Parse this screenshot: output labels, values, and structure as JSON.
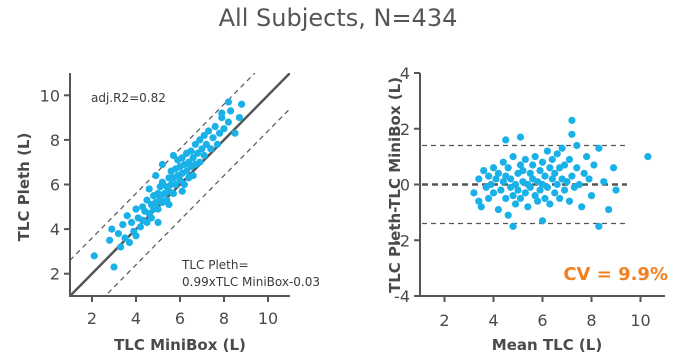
{
  "title": "All Subjects, N=434",
  "colors": {
    "points": "#1ab1e8",
    "axis": "#555555",
    "cv": "#f08020"
  },
  "chart_data": [
    {
      "type": "scatter",
      "xlabel": "TLC MiniBox (L)",
      "ylabel": "TLC Pleth (L)",
      "xlim": [
        1,
        11
      ],
      "ylim": [
        1,
        11
      ],
      "xticks": [
        2,
        4,
        6,
        8,
        10
      ],
      "yticks": [
        2,
        4,
        6,
        8,
        10
      ],
      "annotations": [
        "adj.R2=0.82",
        "TLC Pleth=",
        "0.99xTLC MiniBox-0.03"
      ],
      "identity_line": {
        "x": [
          1,
          11
        ],
        "y": [
          1,
          11
        ]
      },
      "limit_lines": [
        {
          "x": [
            1,
            11
          ],
          "y": [
            2.6,
            12.6
          ]
        },
        {
          "x": [
            1,
            11
          ],
          "y": [
            -0.6,
            9.4
          ]
        }
      ],
      "points": [
        [
          2.1,
          2.8
        ],
        [
          2.8,
          3.5
        ],
        [
          3.0,
          2.3
        ],
        [
          3.2,
          3.8
        ],
        [
          3.4,
          4.2
        ],
        [
          3.5,
          3.6
        ],
        [
          3.6,
          4.6
        ],
        [
          3.7,
          3.4
        ],
        [
          3.8,
          4.3
        ],
        [
          3.9,
          3.9
        ],
        [
          4.0,
          4.9
        ],
        [
          4.0,
          3.7
        ],
        [
          4.1,
          4.5
        ],
        [
          4.2,
          4.1
        ],
        [
          4.3,
          5.0
        ],
        [
          4.3,
          4.4
        ],
        [
          4.4,
          4.8
        ],
        [
          4.5,
          4.3
        ],
        [
          4.5,
          5.3
        ],
        [
          4.6,
          4.7
        ],
        [
          4.7,
          5.1
        ],
        [
          4.7,
          4.5
        ],
        [
          4.8,
          5.5
        ],
        [
          4.8,
          4.9
        ],
        [
          4.9,
          5.2
        ],
        [
          5.0,
          5.6
        ],
        [
          5.0,
          4.9
        ],
        [
          5.1,
          5.4
        ],
        [
          5.1,
          5.9
        ],
        [
          5.2,
          5.2
        ],
        [
          5.2,
          6.1
        ],
        [
          5.3,
          5.6
        ],
        [
          5.4,
          5.9
        ],
        [
          5.4,
          5.3
        ],
        [
          5.5,
          6.3
        ],
        [
          5.5,
          5.7
        ],
        [
          5.6,
          6.0
        ],
        [
          5.6,
          6.6
        ],
        [
          5.7,
          5.6
        ],
        [
          5.7,
          6.3
        ],
        [
          5.8,
          6.7
        ],
        [
          5.8,
          6.0
        ],
        [
          5.9,
          6.4
        ],
        [
          5.9,
          7.1
        ],
        [
          6.0,
          6.2
        ],
        [
          6.0,
          6.8
        ],
        [
          6.1,
          6.5
        ],
        [
          6.1,
          7.2
        ],
        [
          6.2,
          6.0
        ],
        [
          6.2,
          6.9
        ],
        [
          6.3,
          6.6
        ],
        [
          6.3,
          7.4
        ],
        [
          6.4,
          7.0
        ],
        [
          6.4,
          6.3
        ],
        [
          6.5,
          7.5
        ],
        [
          6.5,
          6.8
        ],
        [
          6.6,
          7.2
        ],
        [
          6.7,
          7.8
        ],
        [
          6.7,
          6.9
        ],
        [
          6.8,
          7.4
        ],
        [
          6.9,
          8.0
        ],
        [
          6.9,
          7.0
        ],
        [
          7.0,
          7.6
        ],
        [
          7.1,
          8.2
        ],
        [
          7.1,
          7.3
        ],
        [
          7.2,
          7.8
        ],
        [
          7.3,
          8.4
        ],
        [
          7.4,
          7.6
        ],
        [
          7.5,
          8.1
        ],
        [
          7.6,
          8.6
        ],
        [
          7.7,
          7.8
        ],
        [
          7.8,
          8.3
        ],
        [
          7.9,
          9.0
        ],
        [
          8.0,
          8.5
        ],
        [
          8.2,
          8.8
        ],
        [
          8.3,
          9.3
        ],
        [
          8.5,
          8.3
        ],
        [
          8.7,
          9.0
        ],
        [
          8.2,
          9.7
        ],
        [
          7.9,
          9.2
        ],
        [
          4.9,
          6.4
        ],
        [
          5.2,
          6.9
        ],
        [
          5.7,
          7.3
        ],
        [
          4.6,
          5.8
        ],
        [
          5.0,
          4.3
        ],
        [
          5.5,
          5.1
        ],
        [
          6.1,
          5.7
        ],
        [
          6.6,
          6.4
        ],
        [
          2.9,
          4.0
        ],
        [
          3.3,
          3.2
        ],
        [
          8.8,
          9.6
        ]
      ]
    },
    {
      "type": "scatter",
      "xlabel": "Mean TLC (L)",
      "ylabel": "TLC Pleth-TLC MiniBox (L)",
      "xlim": [
        1,
        11
      ],
      "ylim": [
        -4,
        4
      ],
      "xticks": [
        2,
        4,
        6,
        8,
        10
      ],
      "yticks": [
        -4,
        -2,
        0,
        2,
        4
      ],
      "mean_line": 0,
      "limit_lines": [
        1.4,
        -1.4
      ],
      "annotation": "CV = 9.9%",
      "points": [
        [
          3.2,
          -0.3
        ],
        [
          3.4,
          0.2
        ],
        [
          3.5,
          -0.8
        ],
        [
          3.6,
          0.5
        ],
        [
          3.7,
          -0.1
        ],
        [
          3.8,
          0.3
        ],
        [
          3.8,
          -0.5
        ],
        [
          3.9,
          0.0
        ],
        [
          4.0,
          0.6
        ],
        [
          4.0,
          -0.3
        ],
        [
          4.1,
          0.2
        ],
        [
          4.2,
          -0.9
        ],
        [
          4.2,
          0.4
        ],
        [
          4.3,
          -0.2
        ],
        [
          4.4,
          0.8
        ],
        [
          4.4,
          0.1
        ],
        [
          4.5,
          -0.5
        ],
        [
          4.5,
          0.3
        ],
        [
          4.6,
          -1.1
        ],
        [
          4.6,
          0.6
        ],
        [
          4.7,
          -0.1
        ],
        [
          4.7,
          0.2
        ],
        [
          4.8,
          -0.4
        ],
        [
          4.8,
          1.0
        ],
        [
          4.9,
          0.0
        ],
        [
          4.9,
          -0.7
        ],
        [
          5.0,
          0.4
        ],
        [
          5.0,
          -0.2
        ],
        [
          5.1,
          0.7
        ],
        [
          5.1,
          -0.5
        ],
        [
          5.2,
          0.1
        ],
        [
          5.2,
          0.5
        ],
        [
          5.3,
          -0.3
        ],
        [
          5.3,
          0.9
        ],
        [
          5.4,
          0.0
        ],
        [
          5.4,
          -0.8
        ],
        [
          5.5,
          0.4
        ],
        [
          5.5,
          -0.1
        ],
        [
          5.6,
          0.7
        ],
        [
          5.6,
          0.2
        ],
        [
          5.7,
          -0.4
        ],
        [
          5.7,
          1.0
        ],
        [
          5.8,
          0.1
        ],
        [
          5.8,
          -0.6
        ],
        [
          5.9,
          0.5
        ],
        [
          5.9,
          -0.2
        ],
        [
          6.0,
          0.8
        ],
        [
          6.0,
          0.0
        ],
        [
          6.1,
          -0.5
        ],
        [
          6.1,
          0.3
        ],
        [
          6.2,
          1.2
        ],
        [
          6.2,
          -0.1
        ],
        [
          6.3,
          0.6
        ],
        [
          6.3,
          -0.7
        ],
        [
          6.4,
          0.2
        ],
        [
          6.4,
          0.9
        ],
        [
          6.5,
          -0.3
        ],
        [
          6.5,
          0.4
        ],
        [
          6.6,
          1.1
        ],
        [
          6.6,
          0.0
        ],
        [
          6.7,
          -0.5
        ],
        [
          6.7,
          0.6
        ],
        [
          6.8,
          0.2
        ],
        [
          6.8,
          1.3
        ],
        [
          6.9,
          -0.2
        ],
        [
          6.9,
          0.7
        ],
        [
          7.0,
          0.1
        ],
        [
          7.1,
          -0.6
        ],
        [
          7.1,
          0.9
        ],
        [
          7.2,
          0.3
        ],
        [
          7.2,
          2.3
        ],
        [
          7.3,
          -0.1
        ],
        [
          7.4,
          0.6
        ],
        [
          7.4,
          1.4
        ],
        [
          7.5,
          0.0
        ],
        [
          7.6,
          -0.8
        ],
        [
          7.7,
          0.4
        ],
        [
          7.8,
          1.0
        ],
        [
          7.9,
          0.2
        ],
        [
          8.0,
          -0.4
        ],
        [
          8.1,
          0.7
        ],
        [
          8.3,
          1.3
        ],
        [
          8.5,
          0.1
        ],
        [
          8.7,
          -0.9
        ],
        [
          8.9,
          0.6
        ],
        [
          9.0,
          -0.2
        ],
        [
          10.3,
          1.0
        ],
        [
          4.5,
          1.6
        ],
        [
          4.8,
          -1.5
        ],
        [
          6.0,
          -1.3
        ],
        [
          7.2,
          1.8
        ],
        [
          8.3,
          -1.5
        ],
        [
          3.4,
          -0.6
        ],
        [
          5.1,
          1.7
        ]
      ]
    }
  ]
}
